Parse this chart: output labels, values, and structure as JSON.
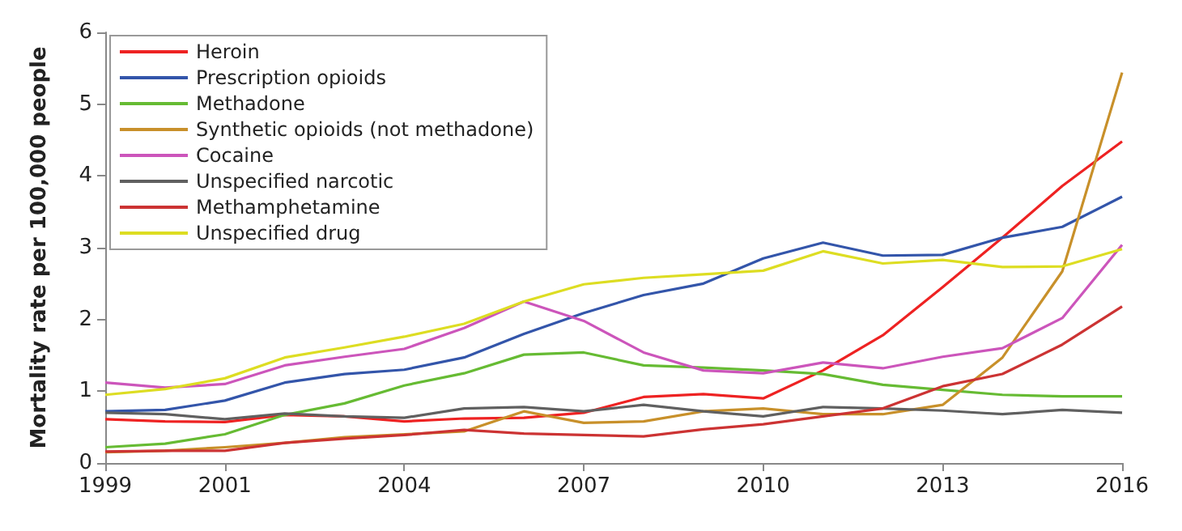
{
  "chart_data": {
    "type": "line",
    "ylabel": "Mortality rate per 100,000 people",
    "x": [
      1999,
      2000,
      2001,
      2002,
      2003,
      2004,
      2005,
      2006,
      2007,
      2008,
      2009,
      2010,
      2011,
      2012,
      2013,
      2014,
      2015,
      2016
    ],
    "xlim": [
      1999,
      2016
    ],
    "xticks": [
      1999,
      2001,
      2004,
      2007,
      2010,
      2013,
      2016
    ],
    "ylim": [
      0,
      6
    ],
    "yticks": [
      0,
      1,
      2,
      3,
      4,
      5,
      6
    ],
    "grid": false,
    "legend": "top left",
    "marker": "none",
    "line_style": "solid",
    "series": [
      {
        "name": "Heroin",
        "color": "#ee2222",
        "values": [
          0.61,
          0.58,
          0.57,
          0.67,
          0.65,
          0.58,
          0.62,
          0.63,
          0.7,
          0.92,
          0.96,
          0.9,
          1.29,
          1.78,
          2.45,
          3.14,
          3.86,
          4.48
        ]
      },
      {
        "name": "Prescription opioids",
        "color": "#3355aa",
        "values": [
          0.72,
          0.74,
          0.87,
          1.12,
          1.24,
          1.3,
          1.47,
          1.8,
          2.09,
          2.34,
          2.5,
          2.85,
          3.07,
          2.89,
          2.9,
          3.14,
          3.29,
          3.71
        ]
      },
      {
        "name": "Methadone",
        "color": "#66bb33",
        "values": [
          0.22,
          0.27,
          0.4,
          0.67,
          0.83,
          1.08,
          1.25,
          1.51,
          1.54,
          1.36,
          1.33,
          1.29,
          1.24,
          1.09,
          1.02,
          0.95,
          0.93,
          0.93
        ]
      },
      {
        "name": "Synthetic opioids (not methadone)",
        "color": "#c8902a",
        "values": [
          0.15,
          0.17,
          0.22,
          0.28,
          0.36,
          0.4,
          0.44,
          0.72,
          0.56,
          0.58,
          0.72,
          0.76,
          0.68,
          0.68,
          0.81,
          1.47,
          2.67,
          5.44
        ]
      },
      {
        "name": "Cocaine",
        "color": "#cc55bb",
        "values": [
          1.12,
          1.05,
          1.1,
          1.36,
          1.48,
          1.59,
          1.88,
          2.25,
          1.98,
          1.54,
          1.29,
          1.25,
          1.4,
          1.32,
          1.48,
          1.6,
          2.02,
          3.04
        ]
      },
      {
        "name": "Unspecified narcotic",
        "color": "#606060",
        "values": [
          0.7,
          0.68,
          0.61,
          0.69,
          0.65,
          0.63,
          0.76,
          0.78,
          0.72,
          0.81,
          0.72,
          0.65,
          0.78,
          0.76,
          0.73,
          0.68,
          0.74,
          0.7
        ]
      },
      {
        "name": "Methamphetamine",
        "color": "#cc3333",
        "values": [
          0.16,
          0.17,
          0.17,
          0.28,
          0.34,
          0.39,
          0.46,
          0.41,
          0.39,
          0.37,
          0.47,
          0.54,
          0.65,
          0.76,
          1.07,
          1.24,
          1.65,
          2.18
        ]
      },
      {
        "name": "Unspecified drug",
        "color": "#dddd22",
        "values": [
          0.95,
          1.03,
          1.18,
          1.47,
          1.61,
          1.76,
          1.94,
          2.25,
          2.49,
          2.58,
          2.63,
          2.68,
          2.95,
          2.78,
          2.83,
          2.73,
          2.74,
          2.98
        ]
      }
    ]
  }
}
